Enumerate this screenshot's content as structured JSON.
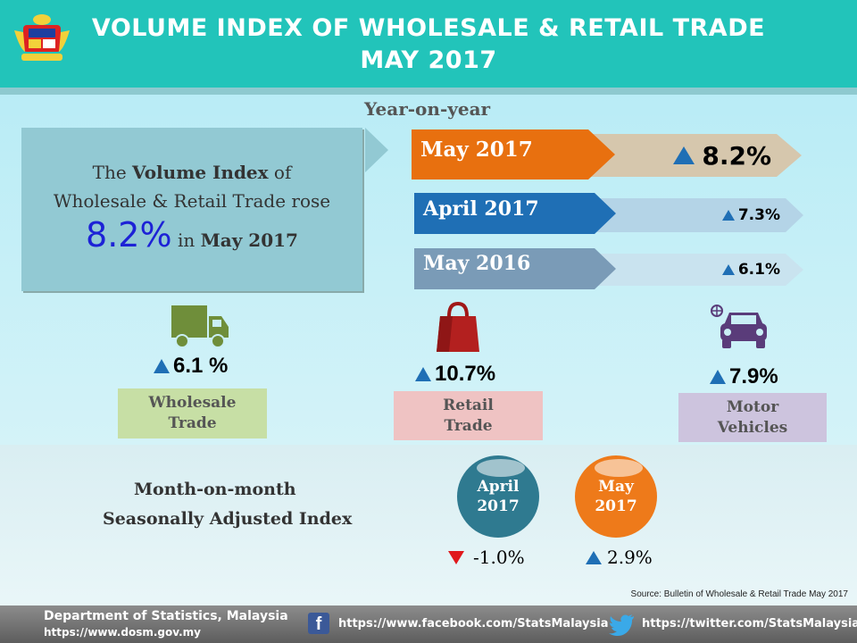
{
  "header": {
    "title_line1": "VOLUME INDEX OF WHOLESALE & RETAIL TRADE",
    "title_line2": "MAY 2017",
    "crest_icon": "malaysia-coat-of-arms"
  },
  "yoy": {
    "label": "Year-on-year",
    "summary": {
      "line1_pre": "The ",
      "line1_bold": "Volume Index",
      "line1_post": " of",
      "line2": "Wholesale & Retail Trade rose",
      "value": "8.2%",
      "in_text": " in ",
      "month": "May 2017"
    },
    "bars": [
      {
        "period": "May 2017",
        "value": "8.2%",
        "color": "#e8700f"
      },
      {
        "period": "April 2017",
        "value": "7.3%",
        "color": "#1f6fb5"
      },
      {
        "period": "May 2016",
        "value": "6.1%",
        "color": "#7a9bb7"
      }
    ]
  },
  "categories": [
    {
      "value": "6.1 %",
      "label_line1": "Wholesale",
      "label_line2": "Trade",
      "icon": "truck-icon",
      "color": "#c7dfa5"
    },
    {
      "value": "10.7%",
      "label_line1": "Retail",
      "label_line2": "Trade",
      "icon": "shopping-bag-icon",
      "color": "#efc3c3"
    },
    {
      "value": "7.9%",
      "label_line1": "Motor",
      "label_line2": "Vehicles",
      "icon": "car-icon",
      "color": "#cdc4de"
    }
  ],
  "mom": {
    "label_line1": "Month-on-month",
    "label_line2": "Seasonally Adjusted Index",
    "items": [
      {
        "month": "April",
        "year": "2017",
        "value": "-1.0%",
        "direction": "down",
        "color": "#2f7a90"
      },
      {
        "month": "May",
        "year": "2017",
        "value": "2.9%",
        "direction": "up",
        "color": "#ee7a1a"
      }
    ]
  },
  "source": "Source: Bulletin of Wholesale & Retail Trade May 2017",
  "footer": {
    "org_name": "Department of Statistics, Malaysia",
    "org_url": "https://www.dosm.gov.my",
    "facebook_url": "https://www.facebook.com/StatsMalaysia",
    "twitter_url": "https://twitter.com/StatsMalaysia"
  }
}
